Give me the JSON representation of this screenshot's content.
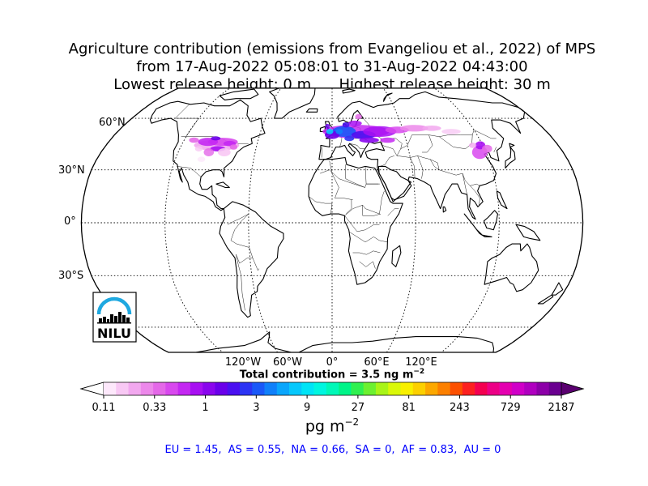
{
  "title": {
    "line1": "Agriculture contribution (emissions from Evangeliou et al., 2022) of MPS",
    "line2": "from 17-Aug-2022 05:08:01 to 31-Aug-2022 04:43:00",
    "line3": "Lowest release height: 0 m      Highest release height: 30 m"
  },
  "map": {
    "projection": "robinson",
    "lat_labels": [
      "60°N",
      "30°N",
      "0°",
      "30°S"
    ],
    "lon_labels": [
      "120°W",
      "60°W",
      "0°",
      "60°E",
      "120°E"
    ],
    "logo_text": "NILU",
    "colors": {
      "land_outline": "#000000",
      "ocean": "#ffffff",
      "grid": "#000000"
    }
  },
  "total_contribution": "Total contribution = 3.5 ng m",
  "total_sup": "−2",
  "colorbar": {
    "tick_labels": [
      "0.11",
      "0.33",
      "1",
      "3",
      "9",
      "27",
      "81",
      "243",
      "729",
      "2187"
    ],
    "unit_base": "pg m",
    "unit_sup": "−2",
    "colors": [
      "#fde8fb",
      "#f8c8f4",
      "#f2a8ef",
      "#ec88ea",
      "#e468e8",
      "#d848ee",
      "#c428f2",
      "#a810f2",
      "#8a06ee",
      "#6a00ea",
      "#4a10f0",
      "#2c34f4",
      "#1a58f8",
      "#1080fa",
      "#0aa6fc",
      "#06c8fc",
      "#00e4f6",
      "#00f6e0",
      "#00f8b8",
      "#00f488",
      "#30f050",
      "#6cf030",
      "#a8f418",
      "#daf808",
      "#f8f000",
      "#fcd000",
      "#fca800",
      "#fc8000",
      "#fc5000",
      "#fc2020",
      "#f40050",
      "#ec0086",
      "#e400b0",
      "#d000c8",
      "#b000c0",
      "#8c00a8",
      "#6a0090"
    ]
  },
  "region_summary": "EU = 1.45,  AS = 0.55,  NA = 0.66,  SA = 0,  AF = 0.83,  AU = 0"
}
